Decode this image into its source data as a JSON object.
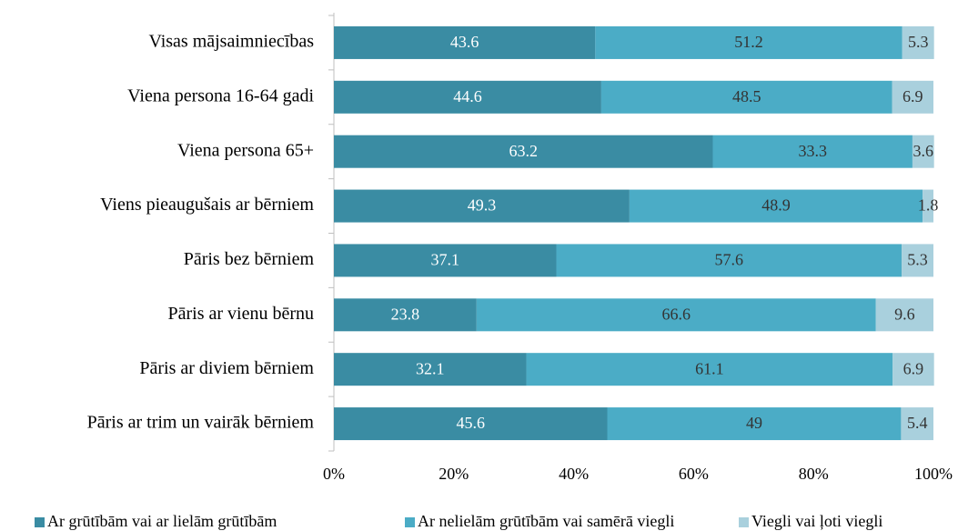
{
  "chart_data": {
    "type": "stacked_barh",
    "categories": [
      "Visas mājsaimniecības",
      "Viena persona 16-64 gadi",
      "Viena persona 65+",
      "Viens pieaugušais ar bērniem",
      "Pāris bez bērniem",
      "Pāris ar vienu bērnu",
      "Pāris ar diviem bērniem",
      "Pāris ar trim un vairāk bērniem"
    ],
    "series": [
      {
        "name": "Ar grūtībām vai ar lielām grūtībām",
        "color": "#3a8ca3",
        "label_color": "#ffffff",
        "values": [
          43.6,
          44.6,
          63.2,
          49.3,
          37.1,
          23.8,
          32.1,
          45.6
        ]
      },
      {
        "name": "Ar nelielām grūtībām vai samērā viegli",
        "color": "#4bacc6",
        "label_color": "#333333",
        "values": [
          51.2,
          48.5,
          33.3,
          48.9,
          57.6,
          66.6,
          61.1,
          49
        ]
      },
      {
        "name": "Viegli vai ļoti viegli",
        "color": "#a9d0dd",
        "label_color": "#333333",
        "values": [
          5.3,
          6.9,
          3.6,
          1.8,
          5.3,
          9.6,
          6.9,
          5.4
        ]
      }
    ],
    "xlim": [
      0,
      100
    ],
    "xticks": [
      {
        "value": 0,
        "label": "0%"
      },
      {
        "value": 20,
        "label": "20%"
      },
      {
        "value": 40,
        "label": "40%"
      },
      {
        "value": 60,
        "label": "60%"
      },
      {
        "value": 80,
        "label": "80%"
      },
      {
        "value": 100,
        "label": "100%"
      }
    ],
    "legend": "bottom"
  }
}
